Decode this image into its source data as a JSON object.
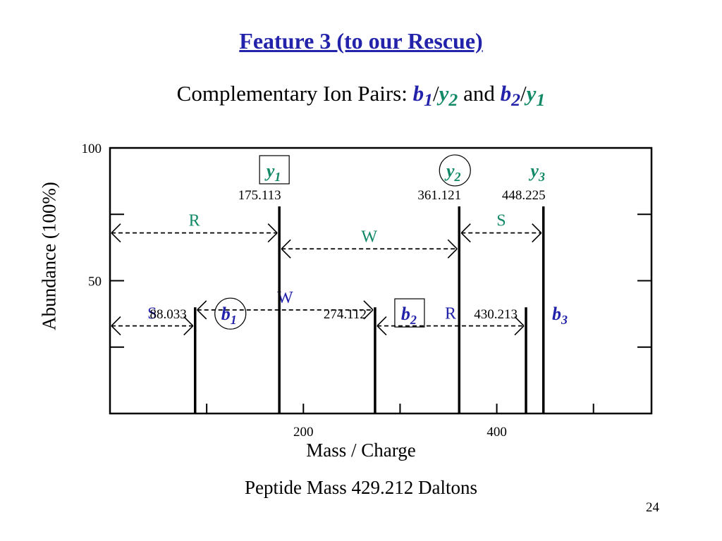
{
  "title": "Feature 3 (to our Rescue)",
  "subtitle": {
    "text": "Complementary Ion Pairs:",
    "pair1_first": {
      "letter": "b",
      "sub": "1"
    },
    "pair1_second": {
      "letter": "y",
      "sub": "2"
    },
    "slash": "/",
    "conjunction": "and",
    "pair2_first": {
      "letter": "b",
      "sub": "2"
    },
    "pair2_second": {
      "letter": "y",
      "sub": "1"
    }
  },
  "footnote": "Peptide Mass 429.212 Daltons",
  "page_number": "24",
  "colors": {
    "b_ion": "#2222aa",
    "y_ion": "#118866",
    "title": "#2222aa"
  },
  "chart_data": {
    "type": "bar",
    "title": "",
    "xlabel": "Mass / Charge",
    "ylabel": "Abundance (100%)",
    "xlim": [
      0,
      560
    ],
    "ylim": [
      0,
      100
    ],
    "x_ticks": [
      {
        "value": 200,
        "label": "200"
      },
      {
        "value": 400,
        "label": "400"
      }
    ],
    "y_ticks": [
      {
        "value": 50,
        "label": "50"
      },
      {
        "value": 100,
        "label": "100"
      }
    ],
    "grid": false,
    "series": [
      {
        "name": "b ions",
        "color": "#2222aa",
        "points": [
          {
            "ion": "b",
            "index": "1",
            "mz": 88.033,
            "label": "88.033",
            "abundance": 40,
            "boxed": "circle"
          },
          {
            "ion": "b",
            "index": "2",
            "mz": 274.112,
            "label": "274.112",
            "abundance": 40,
            "boxed": "square"
          },
          {
            "ion": "b",
            "index": "3",
            "mz": 430.213,
            "label": "430.213",
            "abundance": 40,
            "boxed": "none"
          }
        ]
      },
      {
        "name": "y ions",
        "color": "#118866",
        "points": [
          {
            "ion": "y",
            "index": "1",
            "mz": 175.113,
            "label": "175.113",
            "abundance": 78,
            "boxed": "square"
          },
          {
            "ion": "y",
            "index": "2",
            "mz": 361.121,
            "label": "361.121",
            "abundance": 78,
            "boxed": "circle"
          },
          {
            "ion": "y",
            "index": "3",
            "mz": 448.225,
            "label": "448.225",
            "abundance": 78,
            "boxed": "none"
          }
        ]
      }
    ],
    "annotations": [
      {
        "label": "R",
        "from": 0,
        "to": 175.113,
        "level": 68,
        "color": "#118866"
      },
      {
        "label": "W",
        "from": 175.113,
        "to": 361.121,
        "level": 62,
        "color": "#118866"
      },
      {
        "label": "S",
        "from": 361.121,
        "to": 448.225,
        "level": 68,
        "color": "#118866"
      },
      {
        "label": "S",
        "from": 0,
        "to": 88.033,
        "level": 33,
        "color": "#2222aa"
      },
      {
        "label": "W",
        "from": 88.033,
        "to": 274.112,
        "level": 39,
        "color": "#2222aa"
      },
      {
        "label": "R",
        "from": 274.112,
        "to": 430.213,
        "level": 33,
        "color": "#2222aa"
      }
    ]
  }
}
